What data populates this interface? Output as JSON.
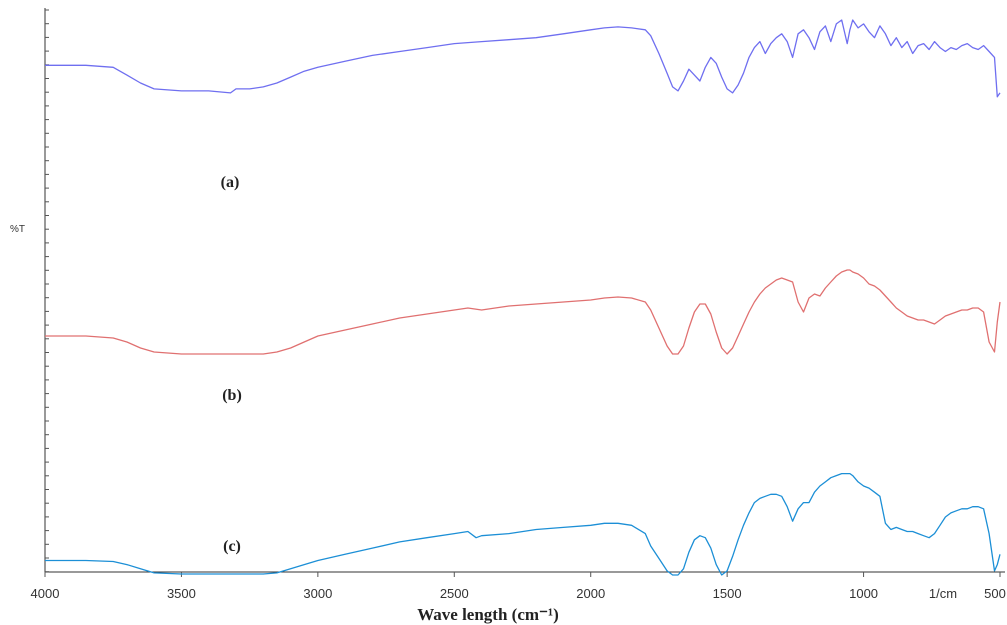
{
  "chart_data": {
    "type": "line",
    "xlabel": "Wave length (cm⁻¹)",
    "ylabel": "%T",
    "x_unit_label": "1/cm",
    "xlim": [
      4000,
      500
    ],
    "ylim": [
      0,
      100
    ],
    "x_ticks": [
      4000,
      3500,
      3000,
      2500,
      2000,
      1500,
      1000,
      500
    ],
    "grid": false,
    "annotations": [
      "(a)",
      "(b)",
      "(c)"
    ],
    "series": [
      {
        "color": "#6f6ff0",
        "x": [
          4000,
          3850,
          3750,
          3700,
          3650,
          3600,
          3500,
          3400,
          3320,
          3300,
          3250,
          3200,
          3150,
          3100,
          3050,
          3000,
          2900,
          2800,
          2700,
          2600,
          2500,
          2400,
          2300,
          2200,
          2100,
          2000,
          1950,
          1900,
          1850,
          1800,
          1780,
          1750,
          1720,
          1700,
          1680,
          1660,
          1640,
          1620,
          1600,
          1580,
          1560,
          1540,
          1520,
          1500,
          1480,
          1460,
          1440,
          1420,
          1400,
          1380,
          1360,
          1340,
          1320,
          1300,
          1280,
          1260,
          1240,
          1220,
          1200,
          1180,
          1160,
          1140,
          1120,
          1100,
          1080,
          1060,
          1050,
          1040,
          1020,
          1000,
          980,
          960,
          940,
          920,
          900,
          880,
          860,
          840,
          820,
          800,
          780,
          760,
          740,
          720,
          700,
          680,
          660,
          640,
          620,
          600,
          580,
          560,
          540,
          520,
          510,
          500
        ],
        "y": [
          76,
          76,
          75,
          71,
          67,
          64,
          63,
          63,
          62,
          64,
          64,
          65,
          67,
          70,
          73,
          75,
          78,
          81,
          83,
          85,
          87,
          88,
          89,
          90,
          92,
          94,
          95,
          95.5,
          95,
          94,
          91,
          82,
          72,
          65,
          63,
          68,
          74,
          71,
          68,
          75,
          80,
          77,
          70,
          64,
          62,
          66,
          72,
          80,
          85,
          88,
          82,
          87,
          90,
          92,
          88,
          80,
          92,
          94,
          90,
          84,
          93,
          96,
          88,
          97,
          99,
          87,
          94,
          99,
          95,
          97,
          93,
          90,
          96,
          92,
          86,
          90,
          85,
          88,
          82,
          86,
          87,
          84,
          88,
          85,
          83,
          85,
          84,
          86,
          87,
          85,
          84,
          86,
          83,
          80,
          60,
          62
        ]
      },
      {
        "color": "#e07070",
        "x": [
          4000,
          3850,
          3750,
          3700,
          3650,
          3600,
          3500,
          3400,
          3300,
          3200,
          3150,
          3100,
          3050,
          3000,
          2900,
          2800,
          2700,
          2600,
          2500,
          2450,
          2400,
          2300,
          2200,
          2100,
          2000,
          1950,
          1900,
          1850,
          1800,
          1780,
          1750,
          1720,
          1700,
          1680,
          1660,
          1640,
          1620,
          1600,
          1580,
          1560,
          1540,
          1520,
          1500,
          1480,
          1460,
          1440,
          1420,
          1400,
          1380,
          1360,
          1340,
          1320,
          1300,
          1280,
          1260,
          1240,
          1220,
          1200,
          1180,
          1160,
          1140,
          1120,
          1100,
          1080,
          1060,
          1050,
          1040,
          1020,
          1000,
          980,
          960,
          940,
          920,
          900,
          880,
          860,
          840,
          820,
          800,
          780,
          760,
          740,
          720,
          700,
          680,
          660,
          640,
          620,
          600,
          580,
          560,
          540,
          520,
          510,
          500
        ],
        "y": [
          38,
          38,
          37,
          35,
          32,
          30,
          29,
          29,
          29,
          29,
          30,
          32,
          35,
          38,
          41,
          44,
          47,
          49,
          51,
          52,
          51,
          53,
          54,
          55,
          56,
          57,
          57.5,
          57,
          55,
          51,
          42,
          33,
          29,
          29,
          33,
          42,
          50,
          54,
          54,
          49,
          40,
          32,
          29,
          32,
          38,
          44,
          50,
          55,
          59,
          62,
          64,
          66,
          67,
          66,
          65,
          55,
          50,
          57,
          59,
          58,
          62,
          65,
          68,
          70,
          71,
          71,
          70,
          69,
          67,
          64,
          63,
          61,
          58,
          55,
          52,
          50,
          48,
          47,
          46,
          46,
          45,
          44,
          46,
          48,
          49,
          50,
          51,
          51,
          52,
          52,
          50,
          35,
          30,
          45,
          55
        ]
      },
      {
        "color": "#1c8fd6",
        "x": [
          4000,
          3850,
          3750,
          3700,
          3650,
          3600,
          3500,
          3400,
          3300,
          3200,
          3150,
          3100,
          3050,
          3000,
          2900,
          2800,
          2700,
          2600,
          2500,
          2450,
          2420,
          2400,
          2300,
          2200,
          2100,
          2000,
          1950,
          1900,
          1850,
          1800,
          1780,
          1750,
          1720,
          1700,
          1680,
          1660,
          1640,
          1620,
          1600,
          1580,
          1560,
          1540,
          1520,
          1500,
          1480,
          1460,
          1440,
          1420,
          1400,
          1380,
          1360,
          1340,
          1320,
          1300,
          1280,
          1260,
          1240,
          1220,
          1200,
          1180,
          1160,
          1140,
          1120,
          1100,
          1080,
          1060,
          1050,
          1040,
          1020,
          1000,
          980,
          960,
          940,
          920,
          900,
          880,
          860,
          840,
          820,
          800,
          780,
          760,
          740,
          720,
          700,
          680,
          660,
          640,
          620,
          600,
          580,
          560,
          540,
          520,
          510,
          500
        ],
        "y": [
          7,
          7,
          6.5,
          5,
          3,
          1,
          0.5,
          0.5,
          0.5,
          0.5,
          1,
          3,
          5,
          7,
          10,
          13,
          16,
          18,
          20,
          21,
          18,
          19,
          20,
          22,
          23,
          24,
          25,
          25,
          24,
          20,
          14,
          8,
          2,
          0,
          0,
          3,
          11,
          17,
          19,
          18,
          13,
          5,
          0,
          2,
          9,
          17,
          24,
          30,
          35,
          37,
          38,
          39,
          39,
          38,
          33,
          26,
          32,
          35,
          35,
          40,
          43,
          45,
          47,
          48,
          49,
          49,
          49,
          48,
          45,
          43,
          42,
          40,
          38,
          25,
          22,
          23,
          22,
          21,
          21,
          20,
          19,
          18,
          20,
          24,
          28,
          30,
          31,
          32,
          32,
          33,
          33,
          32,
          20,
          2,
          5,
          10
        ]
      }
    ]
  }
}
